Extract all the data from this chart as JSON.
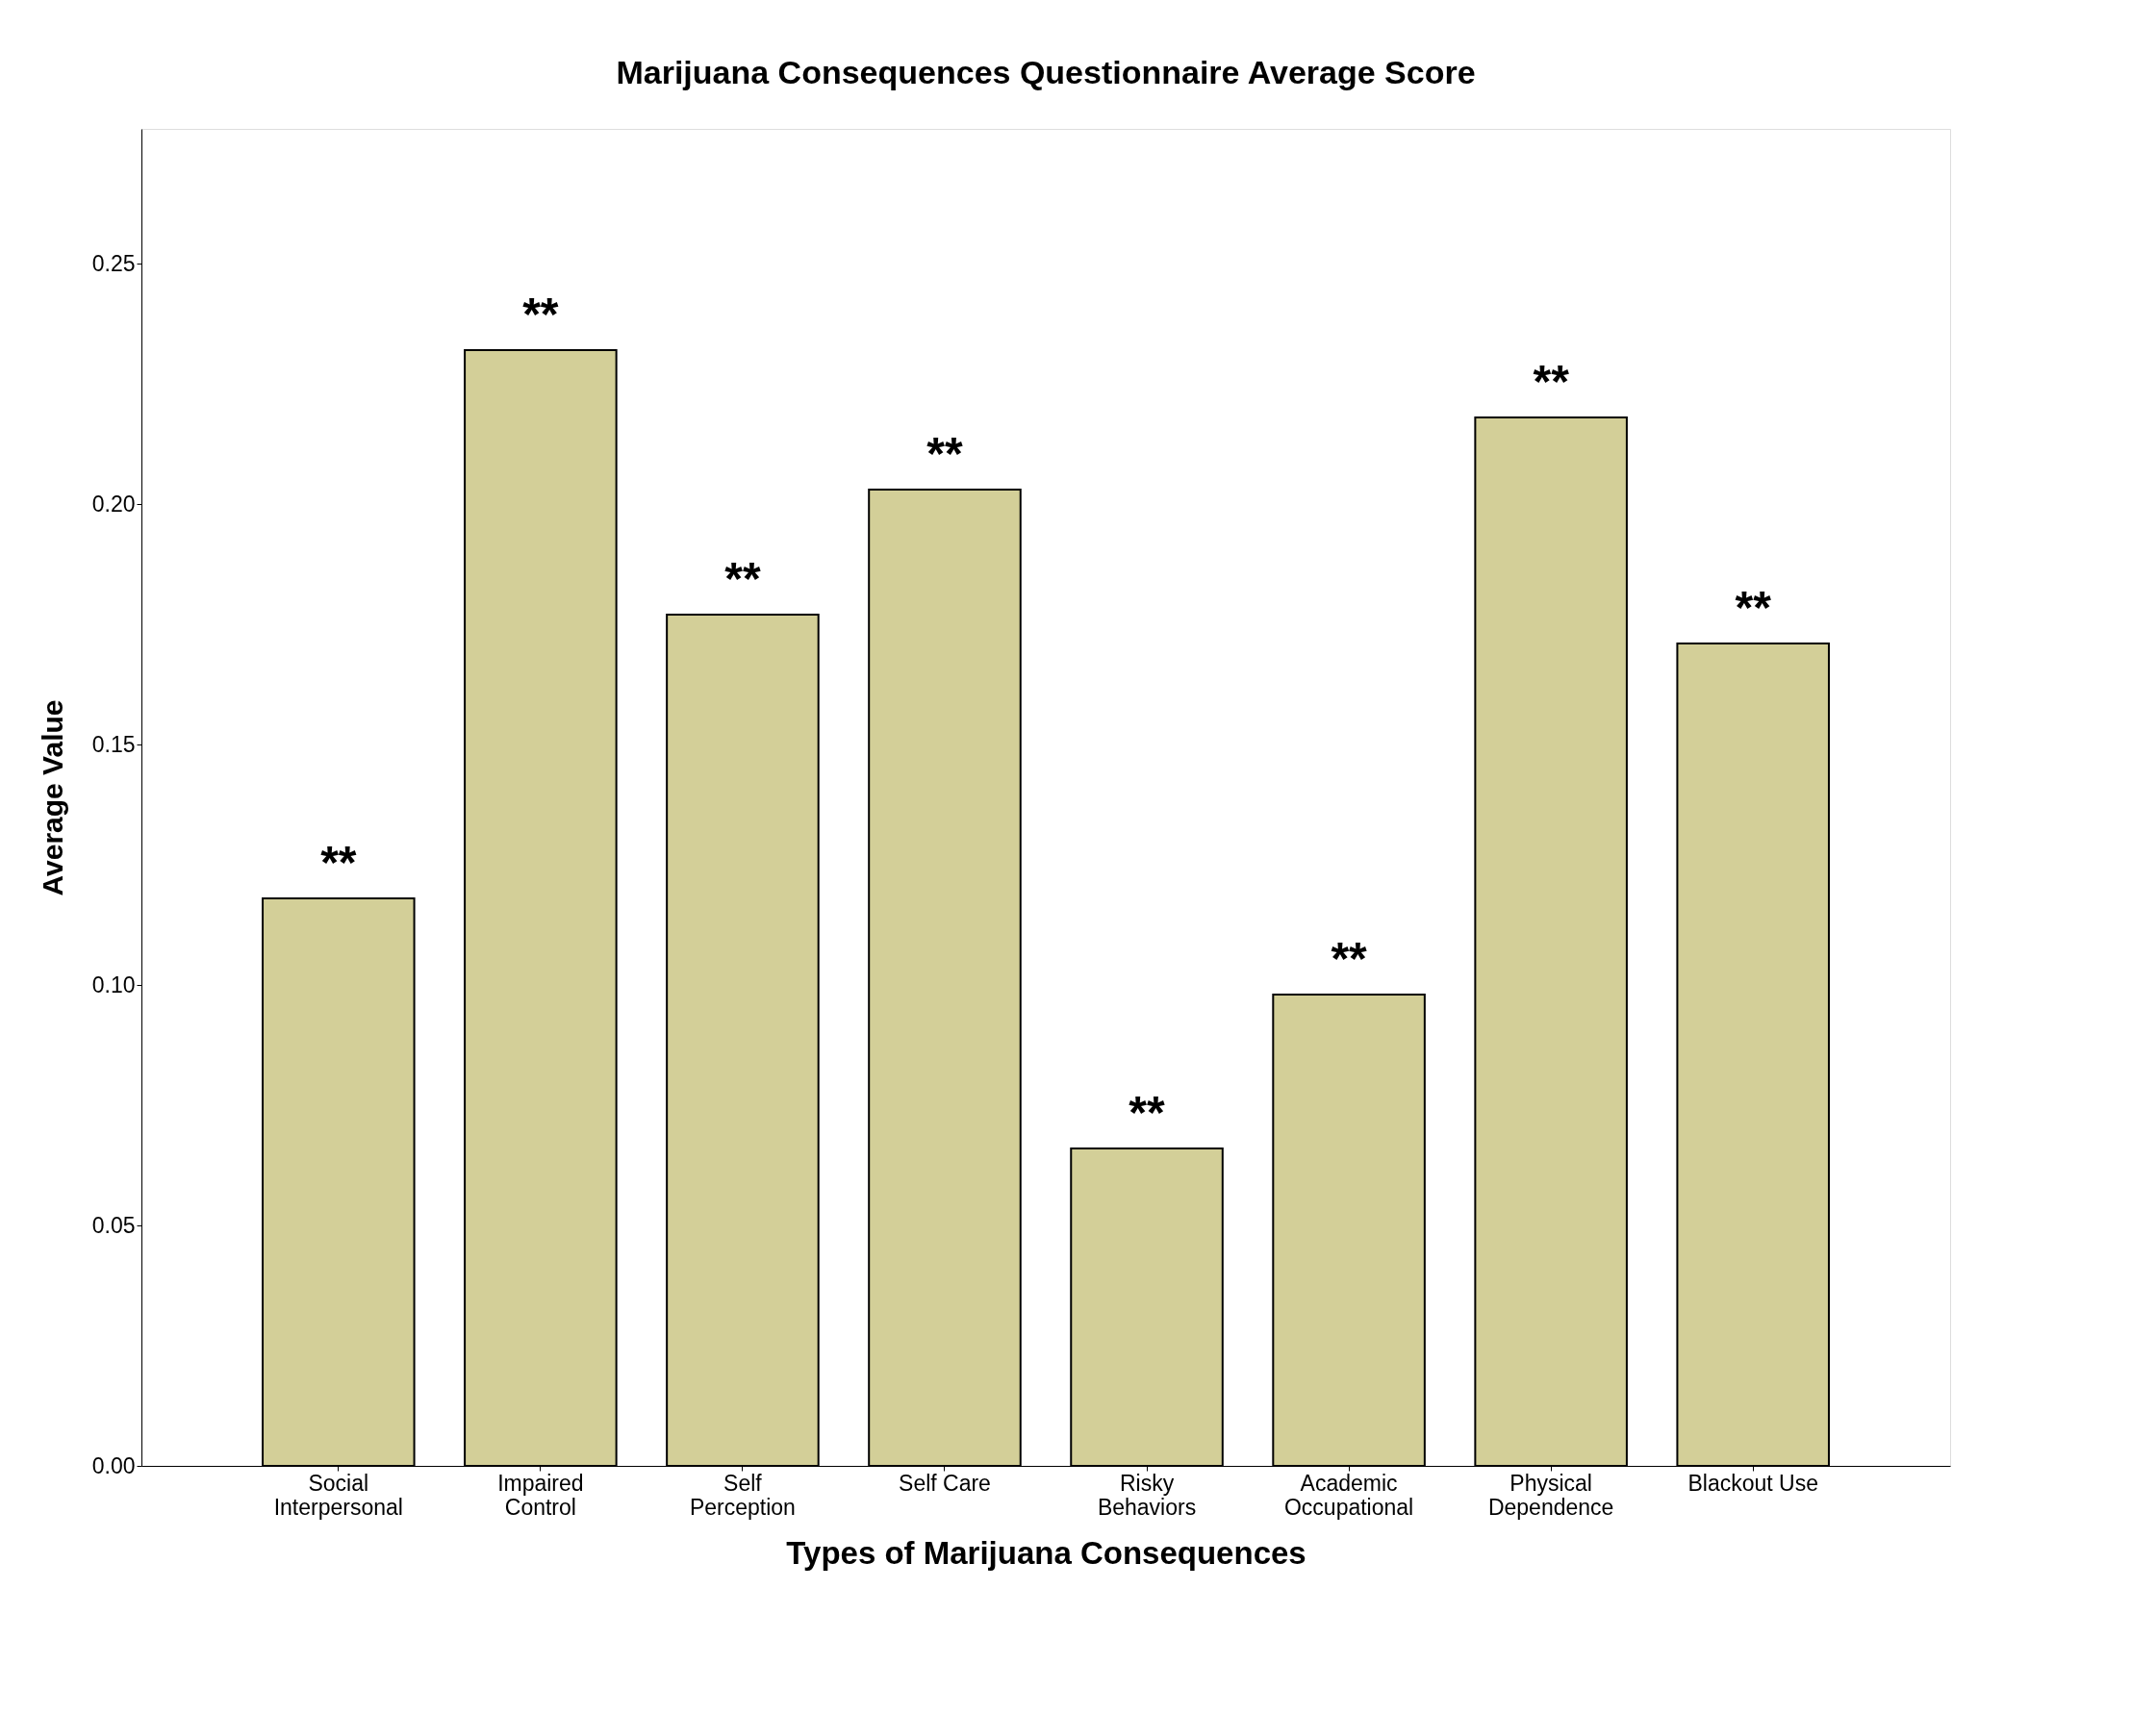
{
  "chart_data": {
    "type": "bar",
    "title": "Marijuana Consequences Questionnaire Average Score",
    "xlabel": "Types of Marijuana Consequences",
    "ylabel": "Average Value",
    "categories": [
      "Social\nInterpersonal",
      "Impaired\nControl",
      "Self\nPerception",
      "Self Care",
      "Risky\nBehaviors",
      "Academic\nOccupational",
      "Physical\nDependence",
      "Blackout Use"
    ],
    "values": [
      0.118,
      0.232,
      0.177,
      0.203,
      0.066,
      0.098,
      0.218,
      0.171
    ],
    "color": "#d3cf98",
    "ylim": [
      0,
      0.278
    ],
    "yticks": [
      {
        "value": 0,
        "label": "0.00"
      },
      0.05,
      {
        "value": 0.1,
        "label": "0.10"
      },
      0.15,
      {
        "value": 0.2,
        "label": "0.20"
      },
      0.25
    ],
    "grid": false,
    "annotations": [
      {
        "text": "**",
        "x": "Social\nInterpersonal",
        "y": 0.118
      },
      {
        "text": "**",
        "x": "Impaired\nControl",
        "y": 0.232
      },
      {
        "text": "**",
        "x": "Self\nPerception",
        "y": 0.177
      },
      {
        "text": "**",
        "x": "Self Care",
        "y": 0.203
      },
      {
        "text": "**",
        "x": "Risky\nBehaviors",
        "y": 0.066
      },
      {
        "text": "**",
        "x": "Academic\nOccupational",
        "y": 0.098
      },
      {
        "text": "**",
        "x": "Physical\nDependence",
        "y": 0.218
      },
      {
        "text": "**",
        "x": "Blackout Use",
        "y": 0.171
      }
    ]
  }
}
